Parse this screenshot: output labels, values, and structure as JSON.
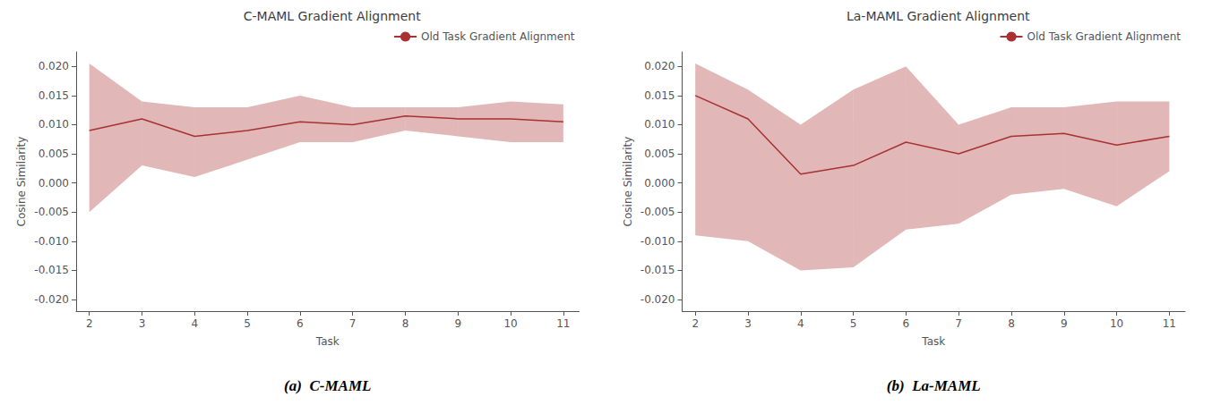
{
  "chart_data": [
    {
      "type": "line",
      "title": "C-MAML Gradient Alignment",
      "caption": "(a)  C-MAML",
      "xlabel": "Task",
      "ylabel": "Cosine Similarity",
      "x": [
        2,
        3,
        4,
        5,
        6,
        7,
        8,
        9,
        10,
        11
      ],
      "series": [
        {
          "name": "Old Task Gradient Alignment",
          "color": "#a83232",
          "values": [
            0.009,
            0.011,
            0.008,
            0.009,
            0.0105,
            0.01,
            0.0115,
            0.011,
            0.011,
            0.0105
          ],
          "upper": [
            0.0205,
            0.014,
            0.013,
            0.013,
            0.015,
            0.013,
            0.013,
            0.013,
            0.014,
            0.0135
          ],
          "lower": [
            -0.005,
            0.003,
            0.001,
            0.004,
            0.007,
            0.007,
            0.009,
            0.008,
            0.007,
            0.007
          ]
        }
      ],
      "xlim": [
        1.75,
        11.3
      ],
      "xticks": [
        2,
        3,
        4,
        5,
        6,
        7,
        8,
        9,
        10,
        11
      ],
      "ylim": [
        -0.022,
        0.0225
      ],
      "yticks": [
        {
          "value": -0.02,
          "label": "-0.020"
        },
        -0.015,
        {
          "value": -0.01,
          "label": "-0.010"
        },
        -0.005,
        {
          "value": 0.0,
          "label": "0.000"
        },
        0.005,
        {
          "value": 0.01,
          "label": "0.010"
        },
        0.015,
        {
          "value": 0.02,
          "label": "0.020"
        }
      ],
      "grid": false,
      "legend": "upper right"
    },
    {
      "type": "line",
      "title": "La-MAML Gradient Alignment",
      "caption": "(b)  La-MAML",
      "xlabel": "Task",
      "ylabel": "Cosine Similarity",
      "x": [
        2,
        3,
        4,
        5,
        6,
        7,
        8,
        9,
        10,
        11
      ],
      "series": [
        {
          "name": "Old Task Gradient Alignment",
          "color": "#a83232",
          "values": [
            0.015,
            0.011,
            0.0015,
            0.003,
            0.007,
            0.005,
            0.008,
            0.0085,
            0.0065,
            0.008
          ],
          "upper": [
            0.0205,
            0.016,
            0.01,
            0.016,
            0.02,
            0.01,
            0.013,
            0.013,
            0.014,
            0.014
          ],
          "lower": [
            -0.009,
            -0.01,
            -0.015,
            -0.0145,
            -0.008,
            -0.007,
            -0.002,
            -0.001,
            -0.004,
            0.002
          ]
        }
      ],
      "xlim": [
        1.75,
        11.3
      ],
      "xticks": [
        2,
        3,
        4,
        5,
        6,
        7,
        8,
        9,
        10,
        11
      ],
      "ylim": [
        -0.022,
        0.0225
      ],
      "yticks": [
        {
          "value": -0.02,
          "label": "-0.020"
        },
        -0.015,
        {
          "value": -0.01,
          "label": "-0.010"
        },
        -0.005,
        {
          "value": 0.0,
          "label": "0.000"
        },
        0.005,
        {
          "value": 0.01,
          "label": "0.010"
        },
        0.015,
        {
          "value": 0.02,
          "label": "0.020"
        }
      ],
      "grid": false,
      "legend": "upper right"
    }
  ]
}
